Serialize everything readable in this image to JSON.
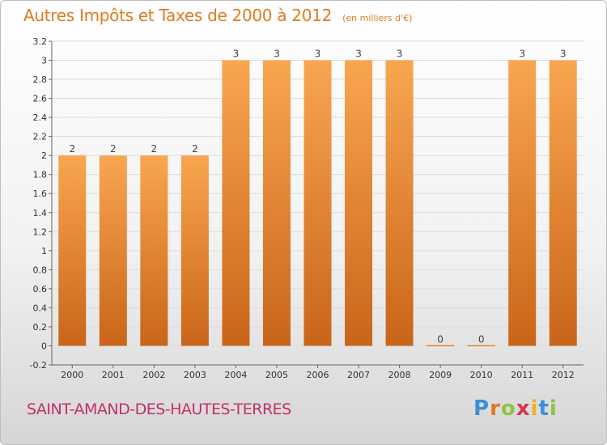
{
  "chart_data": {
    "type": "bar",
    "title": "Autres Impôts et Taxes de 2000 à 2012",
    "subtitle": "(en milliers d'€)",
    "categories": [
      "2000",
      "2001",
      "2002",
      "2003",
      "2004",
      "2005",
      "2006",
      "2007",
      "2008",
      "2009",
      "2010",
      "2011",
      "2012"
    ],
    "values": [
      2,
      2,
      2,
      2,
      3,
      3,
      3,
      3,
      3,
      0,
      0,
      3,
      3
    ],
    "data_labels": [
      "2",
      "2",
      "2",
      "2",
      "3",
      "3",
      "3",
      "3",
      "3",
      "0",
      "0",
      "3",
      "3"
    ],
    "ylim": [
      -0.2,
      3.2
    ],
    "y_ticks": [
      "3.2",
      "3",
      "2.8",
      "2.6",
      "2.4",
      "2.2",
      "2",
      "1.8",
      "1.6",
      "1.4",
      "1.2",
      "1",
      "0.8",
      "0.6",
      "0.4",
      "0.2",
      "0",
      "-0.2"
    ],
    "grid": true,
    "bar_color": "#f08a2c",
    "xlabel": "",
    "ylabel": ""
  },
  "footer": {
    "commune": "SAINT-AMAND-DES-HAUTES-TERRES",
    "logo_letters": [
      "P",
      "r",
      "o",
      "x",
      "i",
      "t",
      "i"
    ],
    "logo_colors": [
      "#3a8fd6",
      "#e07b22",
      "#8cc63f",
      "#d9364c",
      "#f2b01e",
      "#3a8fd6",
      "#8cc63f"
    ]
  }
}
